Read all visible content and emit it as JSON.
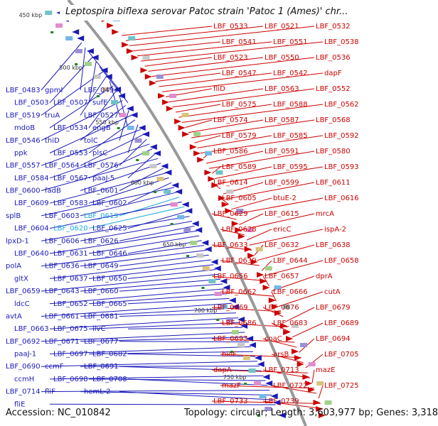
{
  "title": "Leptospira biflexa serovar Patoc strain 'Patoc 1 (Ames)' chr...",
  "footer": {
    "accession": "Accession: NC_010842",
    "summary": "Topology: circular; Length: 3,603,977 bp; Genes: 3,318"
  },
  "colors": {
    "forward": "#cc0000",
    "reverse": "#1a1ab8",
    "highlight": "#1fa8dd",
    "backbone": "#999999"
  },
  "ticks": [
    "450 kbp",
    "500 kbp",
    "550 kbp",
    "600 kbp",
    "650 kbp",
    "700 kbp",
    "750 kbp"
  ],
  "blue_labels": [
    "LBF_0483",
    "gpmI",
    "LBF_0494",
    "LBF_0503",
    "LBF_0507",
    "sufE",
    "LBF_0519",
    "truA",
    "LBF_0527",
    "mdoB",
    "LBF_0534",
    "engB",
    "LBF_0546",
    "thiD",
    "tolC",
    "ppk",
    "LBF_0553",
    "plsC",
    "LBF_0557",
    "LBF_0564",
    "LBF_0576",
    "LBF_0584",
    "LBF_0567",
    "paaJ-5",
    "LBF_0600",
    "fadB",
    "LBF_0601",
    "LBF_0609",
    "LBF_0583",
    "LBF_0602",
    "splB",
    "LBF_0603",
    "LBF_0619",
    "LBF_0604",
    "LBF_0620",
    "LBF_0625",
    "lpxD-1",
    "LBF_0606",
    "LBF_0626",
    "LBF_0640",
    "LBF_0631",
    "LBF_0646",
    "polA",
    "LBF_0636",
    "LBF_0649",
    "gltX",
    "LBF_0637",
    "LBF_0650",
    "LBF_0659",
    "LBF_0643",
    "LBF_0660",
    "ldcC",
    "LBF_0652",
    "LBF_0665",
    "avtA",
    "LBF_0661",
    "LBF_0681",
    "LBF_0663",
    "LBF_0675",
    "ilvC",
    "LBF_0692",
    "LBF_0671",
    "LBF_0677",
    "paaJ-1",
    "LBF_0697",
    "LBF_0682",
    "LBF_0690",
    "ccmF",
    "LBF_0691",
    "ccmH",
    "LBF_0698",
    "LBF_0708",
    "LBF_0714",
    "fliF",
    "hemL-2",
    "fliE"
  ],
  "red_labels": [
    "LBF_0533",
    "LBF_0521",
    "LBF_0532",
    "LBF_0541",
    "LBF_0551",
    "LBF_0538",
    "LBF_0523",
    "LBF_0550",
    "LBF_0536",
    "LBF_0547",
    "LBF_0542",
    "dapF",
    "fliD",
    "LBF_0563",
    "LBF_0552",
    "LBF_0575",
    "LBF_0588",
    "LBF_0562",
    "LBF_0574",
    "LBF_0587",
    "LBF_0568",
    "LBF_0579",
    "LBF_0585",
    "LBF_0592",
    "LBF_0586",
    "LBF_0591",
    "LBF_0580",
    "LBF_0589",
    "LBF_0595",
    "LBF_0593",
    "LBF_0614",
    "LBF_0599",
    "LBF_0611",
    "LBF_0605",
    "btuE-2",
    "LBF_0616",
    "LBF_0629",
    "LBF_0615",
    "mrcA",
    "LBF_0628",
    "ericC",
    "ispA-2",
    "LBF_0633",
    "LBF_0632",
    "LBF_0638",
    "LBF_0639",
    "LBF_0644",
    "LBF_0658",
    "LBF_0656",
    "LBF_0657",
    "dprA",
    "LBF_0662",
    "LBF_0666",
    "cutA",
    "LBF_0669",
    "LBF_0676",
    "LBF_0679",
    "LBF_0686",
    "LBF_0683",
    "LBF_0689",
    "LBF_0693",
    "coaC",
    "LBF_0694",
    "bioF",
    "arsB",
    "LBF_0705",
    "dapA",
    "LBF_0713",
    "mazE",
    "mazF",
    "LBF_0722",
    "LBF_0725",
    "LBF_0733",
    "LBF_0739"
  ]
}
